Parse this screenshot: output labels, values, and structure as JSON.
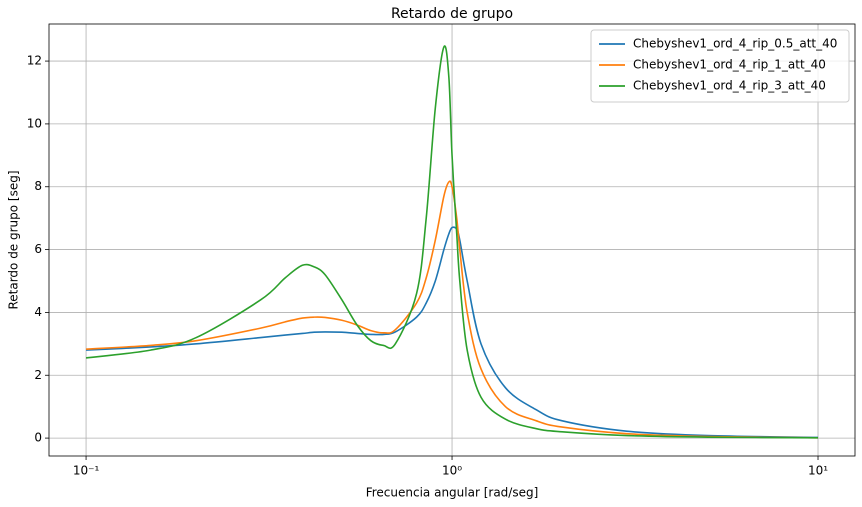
{
  "chart_data": {
    "type": "line",
    "title": "Retardo de grupo",
    "x_label": "Frecuencia angular [rad/seg]",
    "y_label": "Retardo de grupo [seg]",
    "x_scale": "log",
    "grid": true,
    "legend": "upper right",
    "xlim": [
      0.0792,
      12.62
    ],
    "ylim": [
      -0.57,
      13.18
    ],
    "xticks": [
      {
        "value": 0.1,
        "label": "10⁻¹"
      },
      {
        "value": 1,
        "label": "10⁰"
      },
      {
        "value": 10,
        "label": "10¹"
      }
    ],
    "yticks": [
      0,
      2,
      4,
      6,
      8,
      10,
      12
    ],
    "x": [
      0.1,
      0.15,
      0.2,
      0.3,
      0.35,
      0.39,
      0.42,
      0.45,
      0.5,
      0.55,
      0.6,
      0.65,
      0.7,
      0.8,
      0.85,
      0.9,
      0.95,
      0.98,
      1.0,
      1.03,
      1.05,
      1.1,
      1.2,
      1.4,
      1.7,
      2,
      3,
      5,
      10
    ],
    "series": [
      {
        "name": "Chebyshev1_ord_4_rip_0.5_att_40",
        "color": "#1f77b4",
        "values": [
          2.8,
          2.9,
          3.0,
          3.2,
          3.28,
          3.33,
          3.37,
          3.38,
          3.37,
          3.33,
          3.3,
          3.3,
          3.38,
          3.85,
          4.3,
          5.0,
          6.0,
          6.5,
          6.7,
          6.65,
          6.3,
          5.0,
          3.0,
          1.6,
          0.9,
          0.55,
          0.22,
          0.08,
          0.02
        ]
      },
      {
        "name": "Chebyshev1_ord_4_rip_1_att_40",
        "color": "#ff7f0e",
        "values": [
          2.83,
          2.95,
          3.1,
          3.5,
          3.7,
          3.82,
          3.85,
          3.84,
          3.75,
          3.6,
          3.42,
          3.35,
          3.45,
          4.3,
          5.1,
          6.3,
          7.7,
          8.15,
          8.0,
          7.0,
          6.0,
          4.0,
          2.2,
          1.0,
          0.55,
          0.35,
          0.14,
          0.05,
          0.01
        ]
      },
      {
        "name": "Chebyshev1_ord_4_rip_3_att_40",
        "color": "#2ca02c",
        "values": [
          2.55,
          2.8,
          3.2,
          4.4,
          5.1,
          5.5,
          5.45,
          5.2,
          4.4,
          3.6,
          3.1,
          2.95,
          3.0,
          4.6,
          7.0,
          10.5,
          12.45,
          11.5,
          9.0,
          6.5,
          5.0,
          2.8,
          1.3,
          0.6,
          0.3,
          0.2,
          0.08,
          0.03,
          0.01
        ]
      }
    ]
  }
}
